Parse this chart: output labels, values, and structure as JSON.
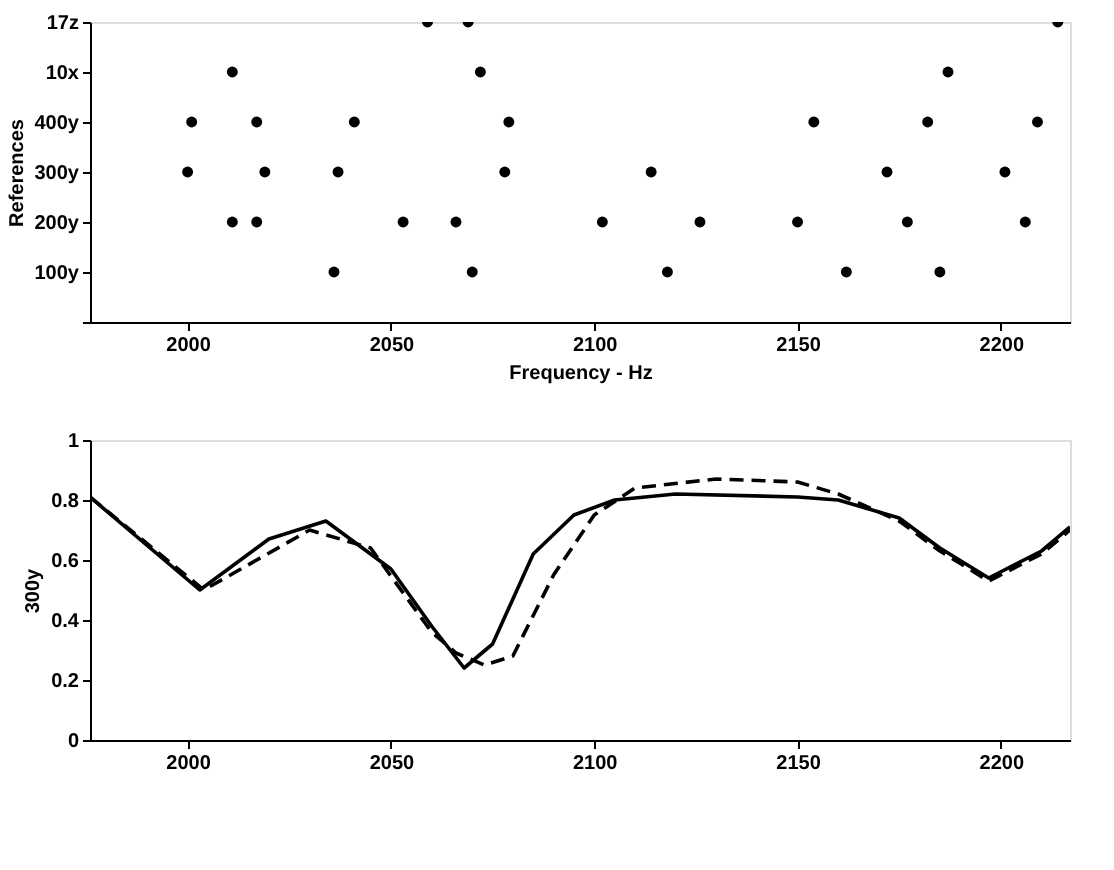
{
  "chart_data": [
    {
      "type": "scatter",
      "orientation": "horizontal",
      "xlabel": "Frequency - Hz",
      "ylabel": "References",
      "xlim": [
        1976,
        2217
      ],
      "xticks": [
        2000,
        2050,
        2100,
        2150,
        2200
      ],
      "categories": [
        "17z",
        "10x",
        "400y",
        "300y",
        "200y",
        "100y",
        null
      ],
      "marker": "circle",
      "grid": false,
      "series": [
        {
          "color": "#000000",
          "values": [
            2059,
            2011,
            2001,
            2000,
            2011,
            2036,
            null
          ]
        },
        {
          "color": "#000000",
          "values": [
            2069,
            2072,
            2017,
            2019,
            2017,
            2070,
            null
          ]
        },
        {
          "color": "#000000",
          "values": [
            2214,
            2187,
            2041,
            2037,
            2053,
            2118,
            null
          ]
        },
        {
          "color": "#000000",
          "values": [
            null,
            null,
            2079,
            2078,
            2066,
            2162,
            null
          ]
        },
        {
          "color": "#000000",
          "values": [
            null,
            null,
            2154,
            2114,
            2102,
            2185,
            null
          ]
        },
        {
          "color": "#000000",
          "values": [
            null,
            null,
            2182,
            2172,
            2126,
            null,
            null
          ]
        },
        {
          "color": "#000000",
          "values": [
            null,
            null,
            2209,
            2201,
            2150,
            null,
            null
          ]
        },
        {
          "color": "#000000",
          "values": [
            null,
            null,
            null,
            null,
            2177,
            null,
            null
          ]
        },
        {
          "color": "#000000",
          "values": [
            null,
            null,
            null,
            null,
            2206,
            null,
            null
          ]
        }
      ]
    },
    {
      "type": "line",
      "ylabel": "300y",
      "xlim": [
        1976,
        2217
      ],
      "xticks": [
        2000,
        2050,
        2100,
        2150,
        2200
      ],
      "ylim": [
        0,
        1
      ],
      "yticks": [
        0,
        0.2,
        0.4,
        0.6,
        0.8,
        1
      ],
      "grid": false,
      "marker": "none",
      "series": [
        {
          "color": "#000000",
          "line_style": "solid",
          "x": [
            1976,
            2003,
            2020,
            2034,
            2050,
            2060,
            2068,
            2075,
            2085,
            2095,
            2105,
            2120,
            2150,
            2160,
            2175,
            2185,
            2197,
            2210,
            2217
          ],
          "values": [
            0.81,
            0.5,
            0.67,
            0.73,
            0.57,
            0.38,
            0.24,
            0.32,
            0.62,
            0.75,
            0.8,
            0.82,
            0.81,
            0.8,
            0.74,
            0.64,
            0.54,
            0.63,
            0.71
          ]
        },
        {
          "color": "#000000",
          "line_style": "dashed",
          "x": [
            1976,
            2004,
            2030,
            2045,
            2060,
            2066,
            2073,
            2080,
            2090,
            2100,
            2110,
            2130,
            2150,
            2160,
            2175,
            2185,
            2197,
            2210,
            2217
          ],
          "values": [
            0.81,
            0.5,
            0.7,
            0.64,
            0.36,
            0.29,
            0.25,
            0.28,
            0.55,
            0.75,
            0.84,
            0.87,
            0.86,
            0.82,
            0.73,
            0.63,
            0.53,
            0.62,
            0.7
          ]
        }
      ]
    }
  ]
}
